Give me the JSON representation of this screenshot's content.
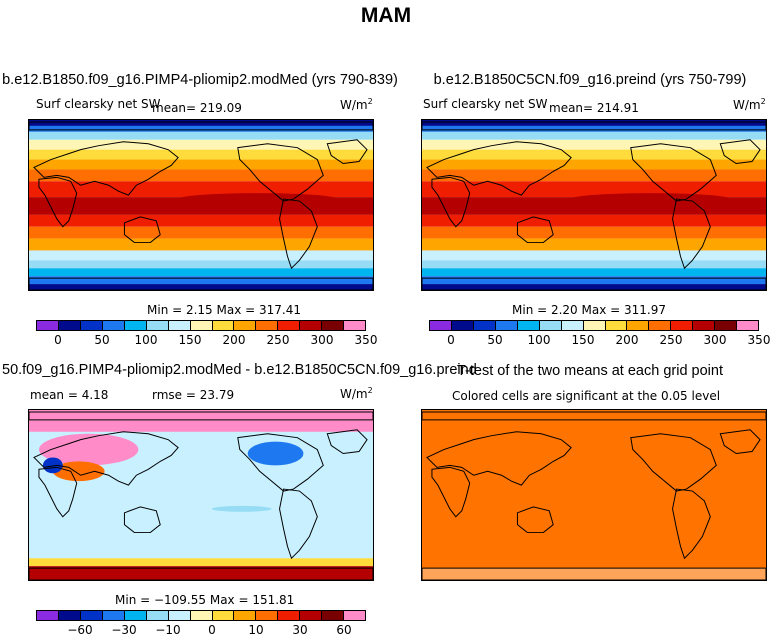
{
  "figure_title": "MAM",
  "colors": {
    "abs_levels": [
      "#8a2be2",
      "#000a8c",
      "#0032c8",
      "#1e78f0",
      "#00b4f0",
      "#96dcf5",
      "#c8f0ff",
      "#fff5b4",
      "#ffdc3c",
      "#ffa500",
      "#ff6e00",
      "#f01e00",
      "#b40000",
      "#780000",
      "#ff8cc8"
    ],
    "diff_levels": [
      "#8a2be2",
      "#000a8c",
      "#0032c8",
      "#1e78f0",
      "#00b4f0",
      "#96dcf5",
      "#c8f0ff",
      "#fff5b4",
      "#ffdc3c",
      "#ffa500",
      "#ff6e00",
      "#f01e00",
      "#b40000",
      "#780000",
      "#ff8cc8"
    ],
    "ttest_fill": "#ff7300"
  },
  "panels": [
    {
      "title": "b.e12.B1850.f09_g16.PIMP4-pliomip2.modMed (yrs 790-839)",
      "variable": "Surf clearsky net SW",
      "mean_text": "mean= 219.09",
      "units": "W/m",
      "units_sup": "2",
      "stats": "Min =    2.15 Max = 317.41",
      "colorbar_ticks": [
        "0",
        "50",
        "100",
        "150",
        "200",
        "250",
        "300",
        "350"
      ]
    },
    {
      "title": "b.e12.B1850C5CN.f09_g16.preind (yrs 750-799)",
      "variable": "Surf clearsky net SW",
      "mean_text": "mean= 214.91",
      "units": "W/m",
      "units_sup": "2",
      "stats": "Min =    2.20 Max = 311.97",
      "colorbar_ticks": [
        "0",
        "50",
        "100",
        "150",
        "200",
        "250",
        "300",
        "350"
      ]
    },
    {
      "title": "50.f09_g16.PIMP4-pliomip2.modMed - b.e12.B1850C5CN.f09_g16.preind",
      "mean_text": "mean =    4.18",
      "rmse_text": "rmse =  23.79",
      "units": "W/m",
      "units_sup": "2",
      "stats": "Min = −109.55 Max = 151.81",
      "colorbar_ticks": [
        "−60",
        "−30",
        "−10",
        "0",
        "10",
        "30",
        "60"
      ]
    },
    {
      "title": "T-test of the two means at each grid point",
      "subtitle": "Colored cells are significant at the 0.05 level"
    }
  ],
  "chart_data": [
    {
      "type": "heatmap",
      "title": "b.e12.B1850.f09_g16.PIMP4-pliomip2.modMed (yrs 790-839)",
      "variable": "Surf clearsky net SW",
      "units": "W/m2",
      "mean": 219.09,
      "min": 2.15,
      "max": 317.41,
      "colorbar_levels": [
        0,
        50,
        100,
        150,
        200,
        250,
        300,
        350
      ]
    },
    {
      "type": "heatmap",
      "title": "b.e12.B1850C5CN.f09_g16.preind (yrs 750-799)",
      "variable": "Surf clearsky net SW",
      "units": "W/m2",
      "mean": 214.91,
      "min": 2.2,
      "max": 311.97,
      "colorbar_levels": [
        0,
        50,
        100,
        150,
        200,
        250,
        300,
        350
      ]
    },
    {
      "type": "heatmap",
      "title": "50.f09_g16.PIMP4-pliomip2.modMed - b.e12.B1850C5CN.f09_g16.preind",
      "units": "W/m2",
      "mean": 4.18,
      "rmse": 23.79,
      "min": -109.55,
      "max": 151.81,
      "colorbar_levels": [
        -60,
        -30,
        -10,
        0,
        10,
        30,
        60
      ]
    },
    {
      "type": "heatmap",
      "title": "T-test of the two means at each grid point",
      "subtitle": "Colored cells are significant at the 0.05 level"
    }
  ]
}
